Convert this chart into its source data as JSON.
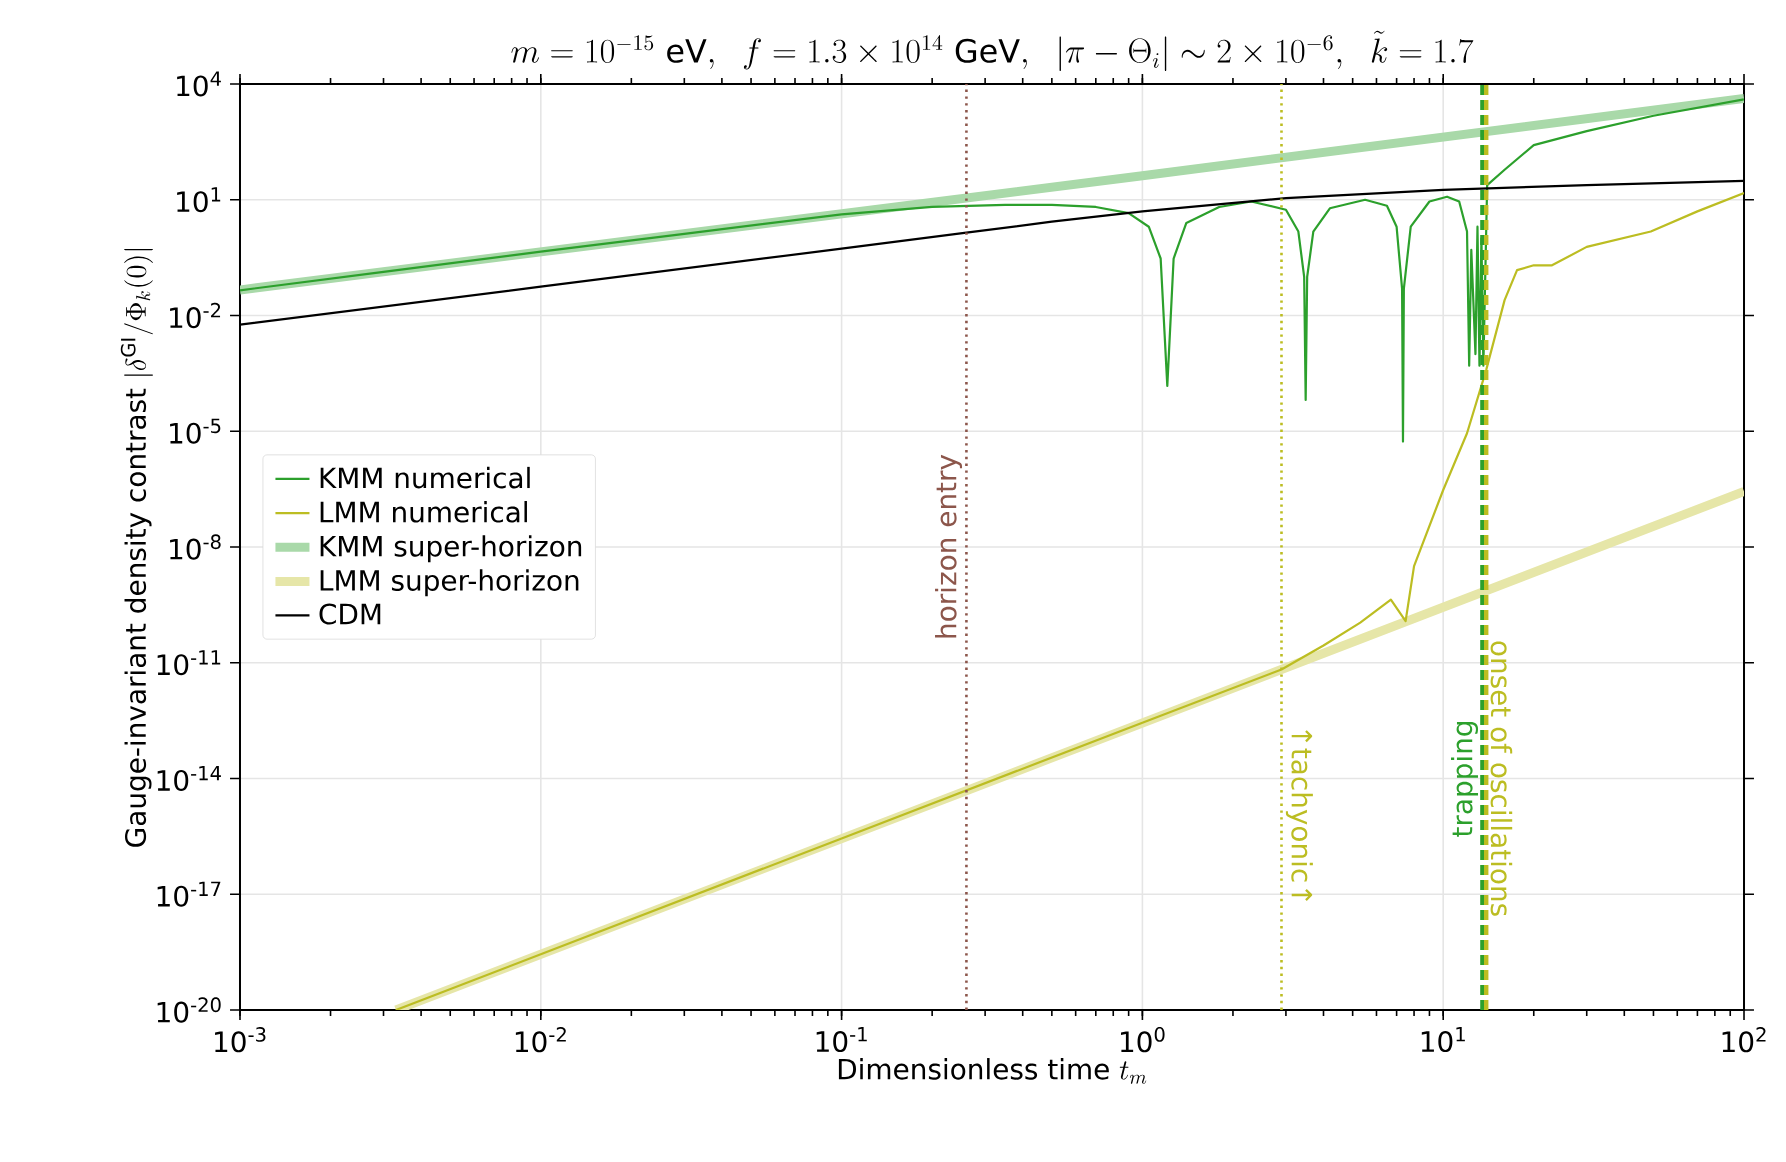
{
  "chart_data": {
    "type": "line",
    "title": "m = 10^{-15}\\ \\mathrm{eV},\\ \\ f = 1.3\\times 10^{14}\\ \\mathrm{GeV},\\ \\ |\\pi-\\Theta_i| \\sim 2\\times 10^{-6},\\ \\ \\tilde{k} = 1.7",
    "xlabel": "\\mbox{Dimensionless time } t_m",
    "ylabel": "\\mbox{Gauge-invariant density contrast } |\\delta^{\\mathrm{GI}}/\\Phi_k(0)|",
    "log": "xy",
    "grid": true,
    "legend": "left",
    "xlim": [
      0.001,
      100
    ],
    "ylim": [
      1e-20,
      10000
    ],
    "xticks": [
      {
        "value": 0.001,
        "label": "10$^{-3}$"
      },
      {
        "value": 0.01,
        "label": "10$^{-2}$"
      },
      {
        "value": 0.1,
        "label": "10$^{-1}$"
      },
      {
        "value": 1,
        "label": "10$^{0}$"
      },
      {
        "value": 10,
        "label": "10$^{1}$"
      },
      {
        "value": 100,
        "label": "10$^{2}$"
      }
    ],
    "yticks": [
      {
        "value": 1e-20,
        "label": "10$^{-20}$"
      },
      {
        "value": 1e-17,
        "label": "10$^{-17}$"
      },
      {
        "value": 1e-14,
        "label": "10$^{-14}$"
      },
      {
        "value": 1e-11,
        "label": "10$^{-11}$"
      },
      {
        "value": 1e-08,
        "label": "10$^{-8}$"
      },
      {
        "value": 1e-05,
        "label": "10$^{-5}$"
      },
      {
        "value": 0.01,
        "label": "10$^{-2}$"
      },
      {
        "value": 10,
        "label": "10$^{1}$"
      },
      {
        "value": 10000,
        "label": "10$^{4}$"
      }
    ],
    "series": [
      {
        "name": "KMM numerical",
        "color": "#2ca02c",
        "x": [
          0.001,
          0.003,
          0.01,
          0.03,
          0.1,
          0.2,
          0.35,
          0.5,
          0.7,
          0.9,
          1.05,
          1.15,
          1.21,
          1.27,
          1.4,
          1.8,
          2.3,
          3.0,
          3.3,
          3.45,
          3.49,
          3.53,
          3.7,
          4.2,
          5.5,
          6.5,
          7.0,
          7.3,
          7.35,
          7.4,
          7.8,
          9,
          10.3,
          11.3,
          12,
          12.2,
          12.4,
          12.8,
          13.0,
          13.2,
          13.4,
          13.6,
          14,
          16,
          20,
          30,
          50,
          100
        ],
        "values": [
          0.045,
          0.135,
          0.45,
          1.3,
          4.2,
          6.5,
          7.4,
          7.4,
          6.5,
          4.5,
          2,
          0.3,
          0.00015,
          0.3,
          2.5,
          6.5,
          9,
          5.5,
          1.5,
          0.1,
          6.5e-05,
          0.1,
          1.5,
          6,
          10,
          7,
          2,
          0.05,
          5.4e-06,
          0.05,
          2,
          9,
          12,
          9,
          1.5,
          0.0005,
          0.5,
          0.001,
          2,
          0.0005,
          1,
          0.0005,
          24,
          60,
          260,
          600,
          1500,
          4000
        ]
      },
      {
        "name": "LMM numerical",
        "color": "#bcbd22",
        "x": [
          0.0033,
          0.1,
          1,
          2.9,
          4,
          5.3,
          6.7,
          7.5,
          8,
          10,
          12,
          13.9,
          16,
          17.6,
          20,
          23,
          30,
          49,
          70,
          100
        ],
        "values": [
          1e-20,
          2.8e-16,
          2.8e-13,
          6.7e-12,
          2.8e-11,
          1.1e-10,
          4.3e-10,
          1.2e-10,
          3.2e-09,
          3e-07,
          8.9e-06,
          0.00039,
          0.025,
          0.15,
          0.2,
          0.2,
          0.6,
          1.5,
          5,
          15
        ]
      },
      {
        "name": "KMM super-horizon",
        "color": "#a9d9a9",
        "x": [
          0.001,
          1,
          100
        ],
        "values": [
          0.046,
          42,
          4200
        ]
      },
      {
        "name": "LMM super-horizon",
        "color": "#e6e6a8",
        "x": [
          0.0033,
          1,
          100
        ],
        "values": [
          1e-20,
          2.75e-13,
          2.75e-07
        ]
      },
      {
        "name": "CDM",
        "color": "#000000",
        "x": [
          0.001,
          0.01,
          0.1,
          0.26,
          0.5,
          1,
          3,
          10,
          30,
          100
        ],
        "values": [
          0.0058,
          0.056,
          0.54,
          1.4,
          2.7,
          5,
          11,
          18,
          24,
          31
        ]
      }
    ],
    "ref_lines": [
      {
        "axis": "x",
        "value": 0.26,
        "label": "horizon entry",
        "color": "#8c564b",
        "line_style": "dotted"
      },
      {
        "axis": "x",
        "value": 2.9,
        "label": "↑tachyonic↑",
        "color": "#bcbd22",
        "line_style": "dotted"
      },
      {
        "axis": "x",
        "value": 13.5,
        "label": "trapping",
        "color": "#2ca02c",
        "line_style": "dashed"
      },
      {
        "axis": "x",
        "value": 13.9,
        "label": "onset of oscillations",
        "color": "#bcbd22",
        "line_style": "dashed"
      }
    ]
  }
}
